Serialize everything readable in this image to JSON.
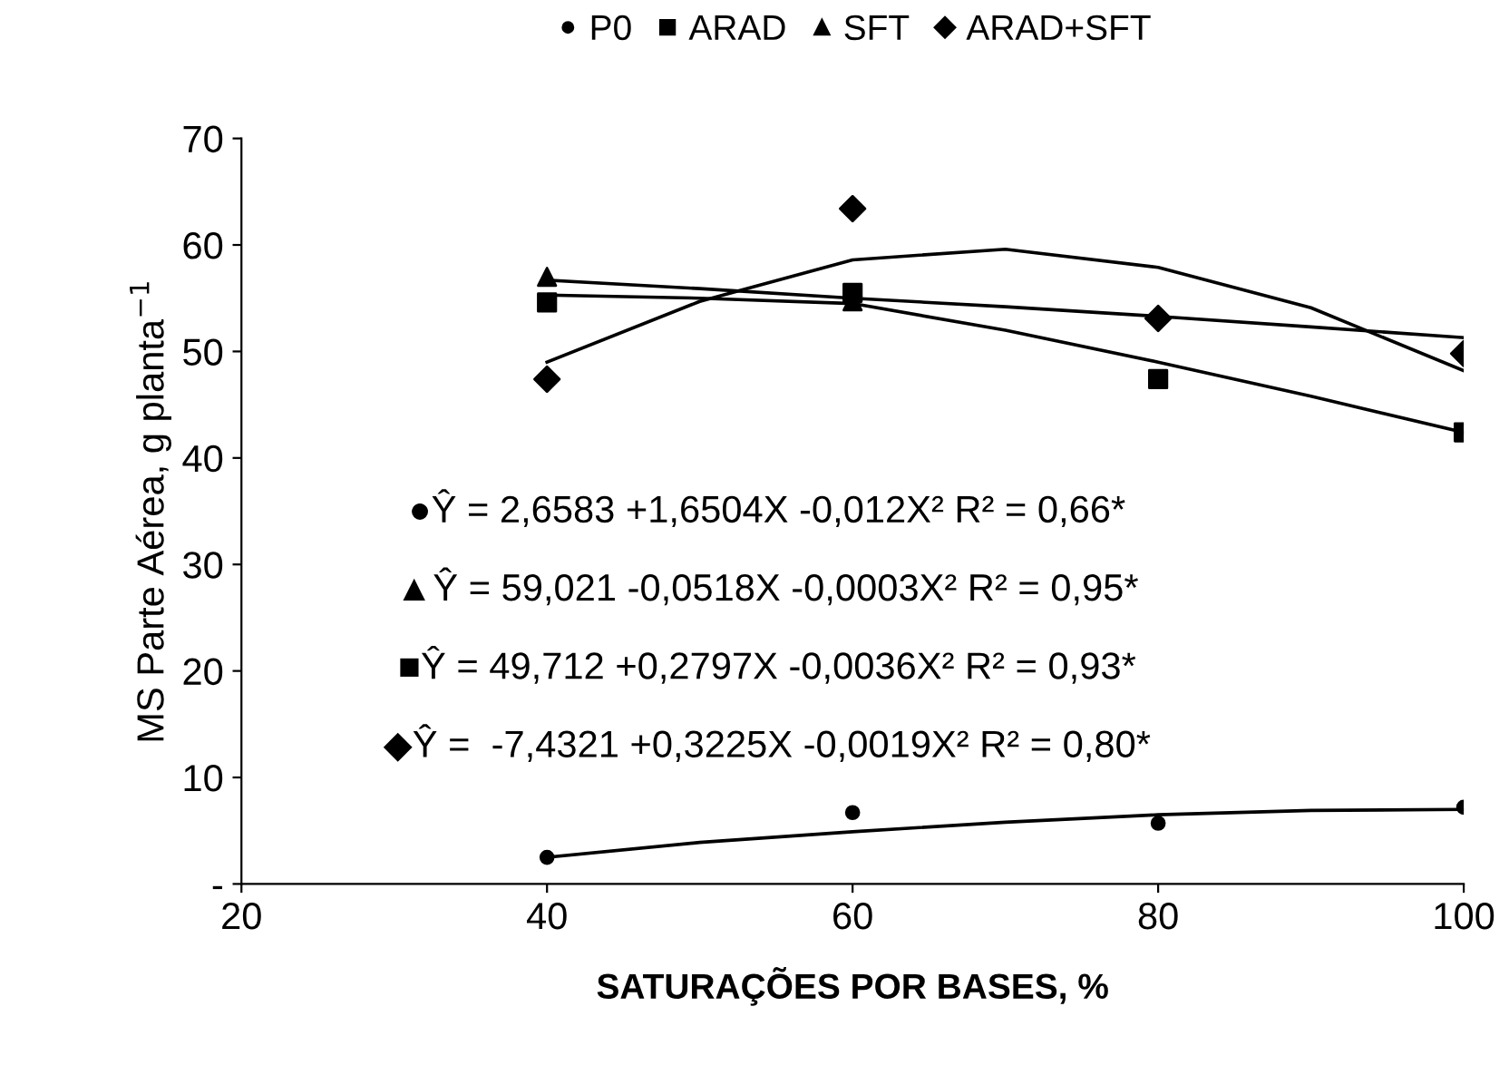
{
  "chart_data": {
    "type": "scatter",
    "xlabel": "SATURAÇÕES POR BASES, %",
    "ylabel": "MS Parte Aérea, g planta$^{−1}$",
    "xlim": [
      20,
      100
    ],
    "xticks": [
      20,
      40,
      60,
      80,
      100
    ],
    "ylim": [
      0,
      70
    ],
    "yticks": [
      {
        "value": 0,
        "label": "-"
      },
      10,
      20,
      30,
      40,
      50,
      60,
      70
    ],
    "grid": false,
    "legend": "top",
    "series": [
      {
        "name": "P0",
        "color": "#000000",
        "marker": "circle",
        "x": [
          40,
          60,
          80,
          100
        ],
        "values": [
          2.5,
          6.7,
          5.7,
          7.2
        ]
      },
      {
        "name": "ARAD",
        "color": "#000000",
        "marker": "square",
        "x": [
          40,
          60,
          80,
          100
        ],
        "values": [
          54.6,
          55.5,
          47.4,
          42.4
        ]
      },
      {
        "name": "SFT",
        "color": "#000000",
        "marker": "triangle",
        "x": [
          40,
          60
        ],
        "values": [
          57.0,
          54.7
        ]
      },
      {
        "name": "ARAD+SFT",
        "color": "#000000",
        "marker": "diamond",
        "x": [
          40,
          60,
          80,
          100
        ],
        "values": [
          47.4,
          63.4,
          53.1,
          49.8
        ]
      },
      {
        "type": "line",
        "color": "#000000",
        "marker": "none",
        "x": [
          40,
          50,
          60,
          70,
          80,
          90,
          100
        ],
        "values": [
          2.5,
          3.9,
          4.9,
          5.8,
          6.5,
          6.9,
          7.0
        ]
      },
      {
        "type": "line",
        "color": "#000000",
        "marker": "none",
        "x": [
          40,
          50,
          60,
          70,
          80,
          90,
          100
        ],
        "values": [
          55.3,
          55.0,
          54.5,
          52.0,
          49.0,
          45.8,
          42.4
        ]
      },
      {
        "type": "line",
        "color": "#000000",
        "marker": "none",
        "x": [
          40,
          50,
          60,
          70,
          80,
          90,
          100
        ],
        "values": [
          56.7,
          55.9,
          55.0,
          54.2,
          53.3,
          52.3,
          51.3
        ]
      },
      {
        "type": "line",
        "color": "#000000",
        "marker": "none",
        "x": [
          40,
          50,
          60,
          70,
          80,
          90,
          100
        ],
        "values": [
          49.0,
          54.7,
          58.6,
          59.6,
          57.9,
          54.1,
          48.2
        ]
      }
    ],
    "annotations": [
      "●Ŷ = 2,6583 +1,6504X -0,012X² R² = 0,66*",
      "▲Ŷ = 59,021 -0,0518X -0,0003X² R² = 0,95*",
      "■Ŷ = 49,712 +0,2797X -0,0036X² R² = 0,93*",
      "◆Ŷ =  -7,4321 +0,3225X -0,0019X² R² = 0,80*"
    ]
  }
}
